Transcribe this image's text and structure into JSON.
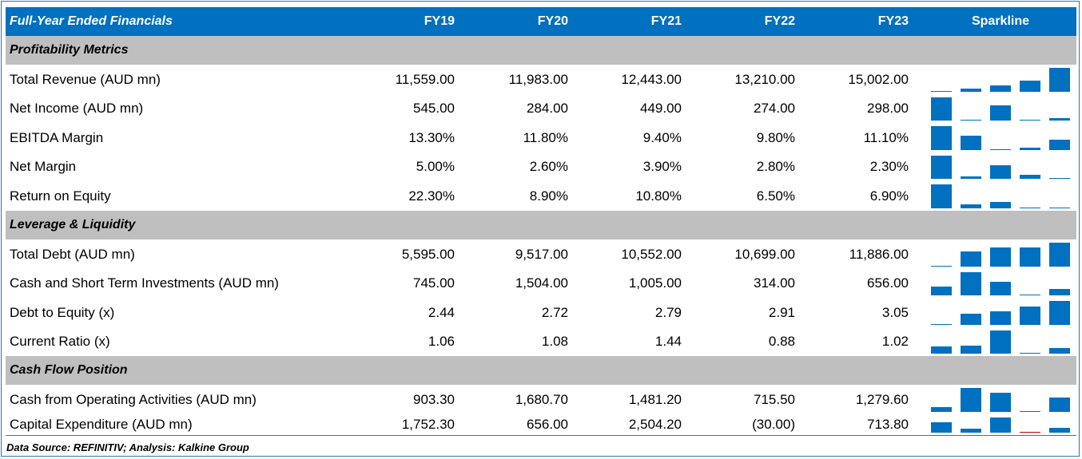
{
  "header": {
    "title": "Full-Year Ended Financials",
    "years": [
      "FY19",
      "FY20",
      "FY21",
      "FY22",
      "FY23"
    ],
    "sparkline": "Sparkline"
  },
  "colors": {
    "header_bg": "#0070c0",
    "section_bg": "#bfbfbf",
    "spark_bar": "#0070c0",
    "spark_negative": "#c00000"
  },
  "sections": [
    {
      "title": "Profitability Metrics",
      "rows": [
        {
          "label": "Total Revenue (AUD mn)",
          "values": [
            "11,559.00",
            "11,983.00",
            "12,443.00",
            "13,210.00",
            "15,002.00"
          ],
          "numeric": [
            11559,
            11983,
            12443,
            13210,
            15002
          ]
        },
        {
          "label": "Net Income (AUD mn)",
          "values": [
            "545.00",
            "284.00",
            "449.00",
            "274.00",
            "298.00"
          ],
          "numeric": [
            545,
            284,
            449,
            274,
            298
          ]
        },
        {
          "label": "EBITDA Margin",
          "values": [
            "13.30%",
            "11.80%",
            "9.40%",
            "9.80%",
            "11.10%"
          ],
          "numeric": [
            13.3,
            11.8,
            9.4,
            9.8,
            11.1
          ]
        },
        {
          "label": "Net Margin",
          "values": [
            "5.00%",
            "2.60%",
            "3.90%",
            "2.80%",
            "2.30%"
          ],
          "numeric": [
            5.0,
            2.6,
            3.9,
            2.8,
            2.3
          ]
        },
        {
          "label": "Return on Equity",
          "values": [
            "22.30%",
            "8.90%",
            "10.80%",
            "6.50%",
            "6.90%"
          ],
          "numeric": [
            22.3,
            8.9,
            10.8,
            6.5,
            6.9
          ]
        }
      ]
    },
    {
      "title": "Leverage & Liquidity",
      "rows": [
        {
          "label": "Total Debt (AUD mn)",
          "values": [
            "5,595.00",
            "9,517.00",
            "10,552.00",
            "10,699.00",
            "11,886.00"
          ],
          "numeric": [
            5595,
            9517,
            10552,
            10699,
            11886
          ]
        },
        {
          "label": "Cash and Short Term Investments (AUD mn)",
          "values": [
            "745.00",
            "1,504.00",
            "1,005.00",
            "314.00",
            "656.00"
          ],
          "numeric": [
            745,
            1504,
            1005,
            314,
            656
          ]
        },
        {
          "label": "Debt to Equity (x)",
          "values": [
            "2.44",
            "2.72",
            "2.79",
            "2.91",
            "3.05"
          ],
          "numeric": [
            2.44,
            2.72,
            2.79,
            2.91,
            3.05
          ]
        },
        {
          "label": "Current Ratio (x)",
          "values": [
            "1.06",
            "1.08",
            "1.44",
            "0.88",
            "1.02"
          ],
          "numeric": [
            1.06,
            1.08,
            1.44,
            0.88,
            1.02
          ]
        }
      ]
    },
    {
      "title": "Cash Flow Position",
      "rows": [
        {
          "label": "Cash from Operating Activities (AUD mn)",
          "values": [
            "903.30",
            "1,680.70",
            "1,481.20",
            "715.50",
            "1,279.60"
          ],
          "numeric": [
            903.3,
            1680.7,
            1481.2,
            715.5,
            1279.6
          ]
        },
        {
          "label": "Capital Expenditure (AUD mn)",
          "values": [
            "1,752.30",
            "656.00",
            "2,504.20",
            "(30.00)",
            "713.80"
          ],
          "numeric": [
            1752.3,
            656,
            2504.2,
            -30,
            713.8
          ]
        }
      ]
    }
  ],
  "footer": "Data Source: REFINITIV; Analysis: Kalkine Group"
}
